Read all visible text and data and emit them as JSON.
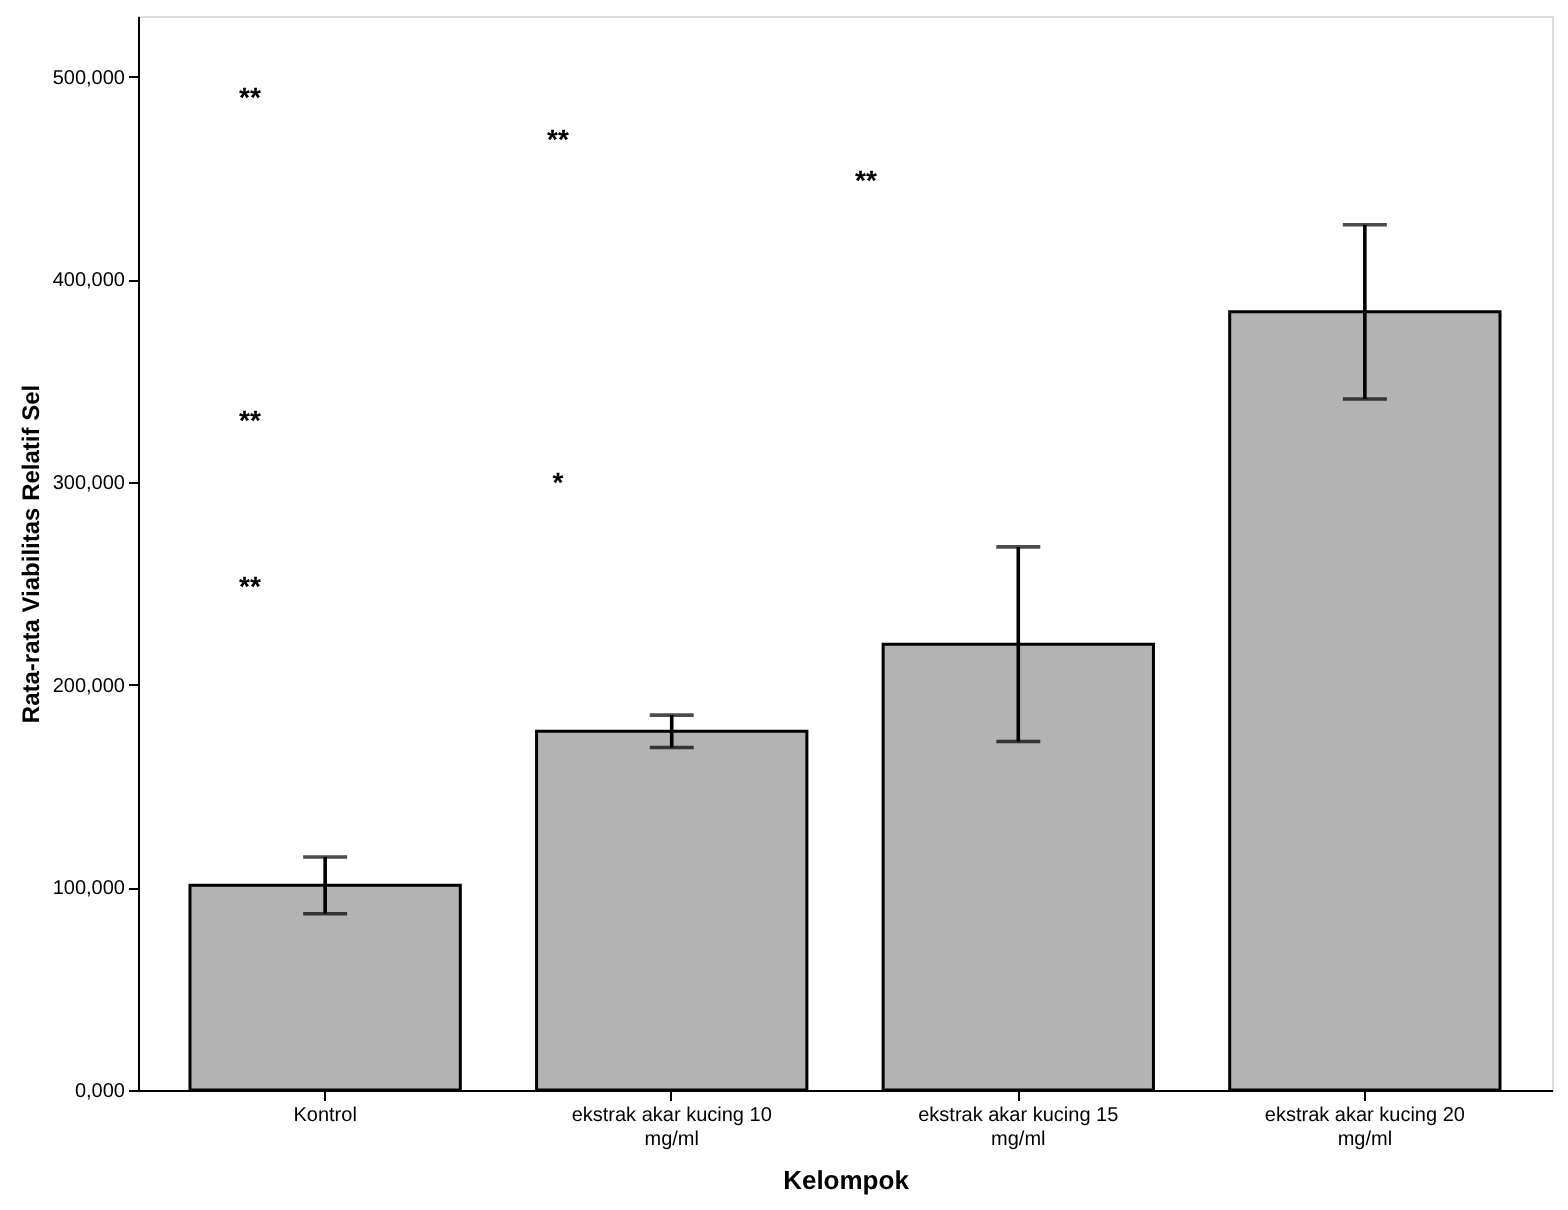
{
  "chart_data": {
    "type": "bar",
    "xlabel": "Kelompok",
    "ylabel": "Rata-rata Viabilitas Relatif Sel",
    "categories": [
      "Kontrol",
      "ekstrak akar kucing 10 mg/ml",
      "ekstrak akar kucing 15 mg/ml",
      "ekstrak akar kucing 20 mg/ml"
    ],
    "values": [
      101000,
      177000,
      220000,
      384000
    ],
    "errors": [
      14000,
      8000,
      48000,
      43000
    ],
    "color": "#b3b3b3",
    "ylim": [
      0,
      530000
    ],
    "yticks": [
      {
        "value": 0,
        "label": "0,000"
      },
      {
        "value": 100000,
        "label": "100,000"
      },
      {
        "value": 200000,
        "label": "200,000"
      },
      {
        "value": 300000,
        "label": "300,000"
      },
      {
        "value": 400000,
        "label": "400,000"
      },
      {
        "value": 500000,
        "label": "500,000"
      }
    ],
    "grid": false,
    "annotations": [
      "**",
      "**",
      "**",
      "**",
      "*",
      "**"
    ]
  }
}
